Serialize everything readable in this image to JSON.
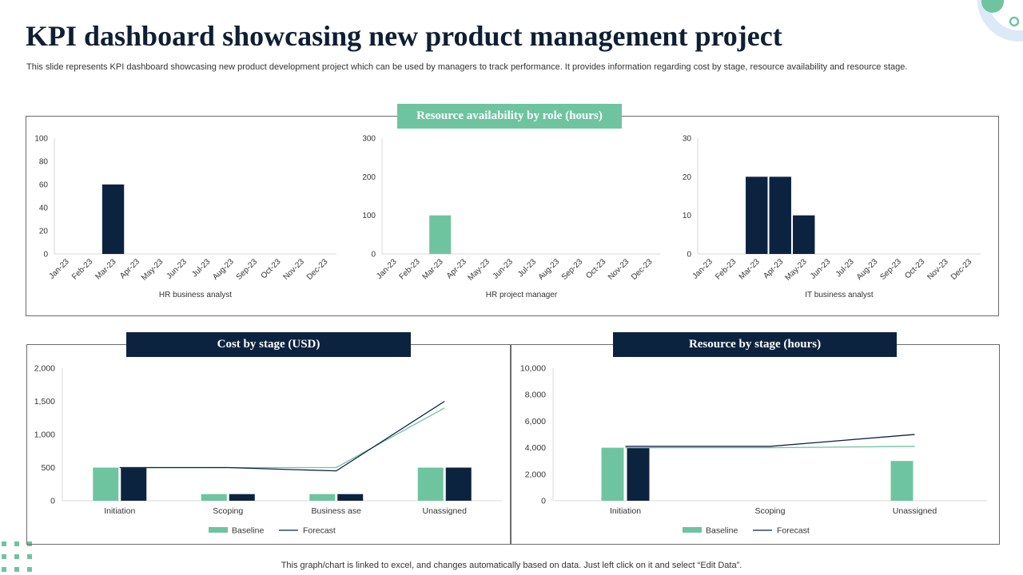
{
  "page": {
    "title": "KPI dashboard showcasing new product management project",
    "subtitle": "This slide represents KPI dashboard showcasing new product development project which can be used by managers to track performance. It provides information regarding cost by stage, resource availability and resource stage.",
    "footer": "This graph/chart is linked to excel,  and changes automatically based on data. Just left click on it and select “Edit Data”."
  },
  "sections": {
    "availability_header": "Resource availability  by role (hours)",
    "cost_header": "Cost by stage (USD)",
    "resource_stage_header": "Resource by stage (hours)"
  },
  "colors": {
    "navy": "#0c2340",
    "green": "#6fc4a0",
    "forecast_line": "#0c2340",
    "baseline_line": "#6fc4a0"
  },
  "chart_data": [
    {
      "id": "hr-business-analyst",
      "type": "bar",
      "categories": [
        "Jan-23",
        "Feb-23",
        "Mar-23",
        "Apr-23",
        "May-23",
        "Jun-23",
        "Jul-23",
        "Aug-23",
        "Sep-23",
        "Oct-23",
        "Nov-23",
        "Dec-23"
      ],
      "values": [
        0,
        0,
        60,
        0,
        0,
        0,
        0,
        0,
        0,
        0,
        0,
        0
      ],
      "color": "#0c2340",
      "xlabel": "HR business analyst",
      "ylim": [
        0,
        100
      ],
      "yticks": [
        0,
        20,
        40,
        60,
        80,
        100
      ]
    },
    {
      "id": "hr-project-manager",
      "type": "bar",
      "categories": [
        "Jan-23",
        "Feb-23",
        "Mar-23",
        "Apr-23",
        "May-23",
        "Jun-23",
        "Jul-23",
        "Aug-23",
        "Sep-23",
        "Oct-23",
        "Nov-23",
        "Dec-23"
      ],
      "values": [
        0,
        0,
        100,
        0,
        0,
        0,
        0,
        0,
        0,
        0,
        0,
        0
      ],
      "color": "#6fc4a0",
      "xlabel": "HR project manager",
      "ylim": [
        0,
        300
      ],
      "yticks": [
        0,
        100,
        200,
        300
      ]
    },
    {
      "id": "it-business-analyst",
      "type": "bar",
      "categories": [
        "Jan-23",
        "Feb-23",
        "Mar-23",
        "Apr-23",
        "May-23",
        "Jun-23",
        "Jul-23",
        "Aug-23",
        "Sep-23",
        "Oct-23",
        "Nov-23",
        "Dec-23"
      ],
      "values": [
        0,
        0,
        20,
        20,
        10,
        0,
        0,
        0,
        0,
        0,
        0,
        0
      ],
      "color": "#0c2340",
      "xlabel": "IT business analyst",
      "ylim": [
        0,
        30
      ],
      "yticks": [
        0,
        10,
        20,
        30
      ]
    },
    {
      "id": "cost-by-stage",
      "type": "bar",
      "title": "Cost by stage (USD)",
      "categories": [
        "Initiation",
        "Scoping",
        "Business ase",
        "Unassigned"
      ],
      "series": [
        {
          "name": "Baseline",
          "kind": "bar",
          "values": [
            500,
            100,
            100,
            500
          ]
        },
        {
          "name": "Forecast",
          "kind": "bar",
          "values": [
            500,
            100,
            100,
            500
          ]
        },
        {
          "name": "Baseline",
          "kind": "line",
          "values": [
            500,
            500,
            500,
            1400
          ]
        },
        {
          "name": "Forecast",
          "kind": "line",
          "values": [
            500,
            500,
            450,
            1500
          ]
        }
      ],
      "legend": [
        "Baseline",
        "Forecast"
      ],
      "ylim": [
        0,
        2000
      ],
      "yticks": [
        0,
        500,
        1000,
        1500,
        2000
      ],
      "ytick_labels": [
        "0",
        "500",
        "1,000",
        "1,500",
        "2,000"
      ]
    },
    {
      "id": "resource-by-stage",
      "type": "bar",
      "title": "Resource by stage (hours)",
      "categories": [
        "Initiation",
        "Scoping",
        "Unassigned"
      ],
      "series": [
        {
          "name": "Baseline",
          "kind": "bar",
          "values": [
            4000,
            0,
            3000
          ]
        },
        {
          "name": "Forecast",
          "kind": "bar",
          "values": [
            4000,
            0,
            0
          ]
        },
        {
          "name": "Baseline",
          "kind": "line",
          "values": [
            4000,
            4000,
            4100
          ]
        },
        {
          "name": "Forecast",
          "kind": "line",
          "values": [
            4100,
            4100,
            5000
          ]
        }
      ],
      "legend": [
        "Baseline",
        "Forecast"
      ],
      "ylim": [
        0,
        10000
      ],
      "yticks": [
        0,
        2000,
        4000,
        6000,
        8000,
        10000
      ],
      "ytick_labels": [
        "0",
        "2,000",
        "4,000",
        "6,000",
        "8,000",
        "10,000"
      ]
    }
  ]
}
